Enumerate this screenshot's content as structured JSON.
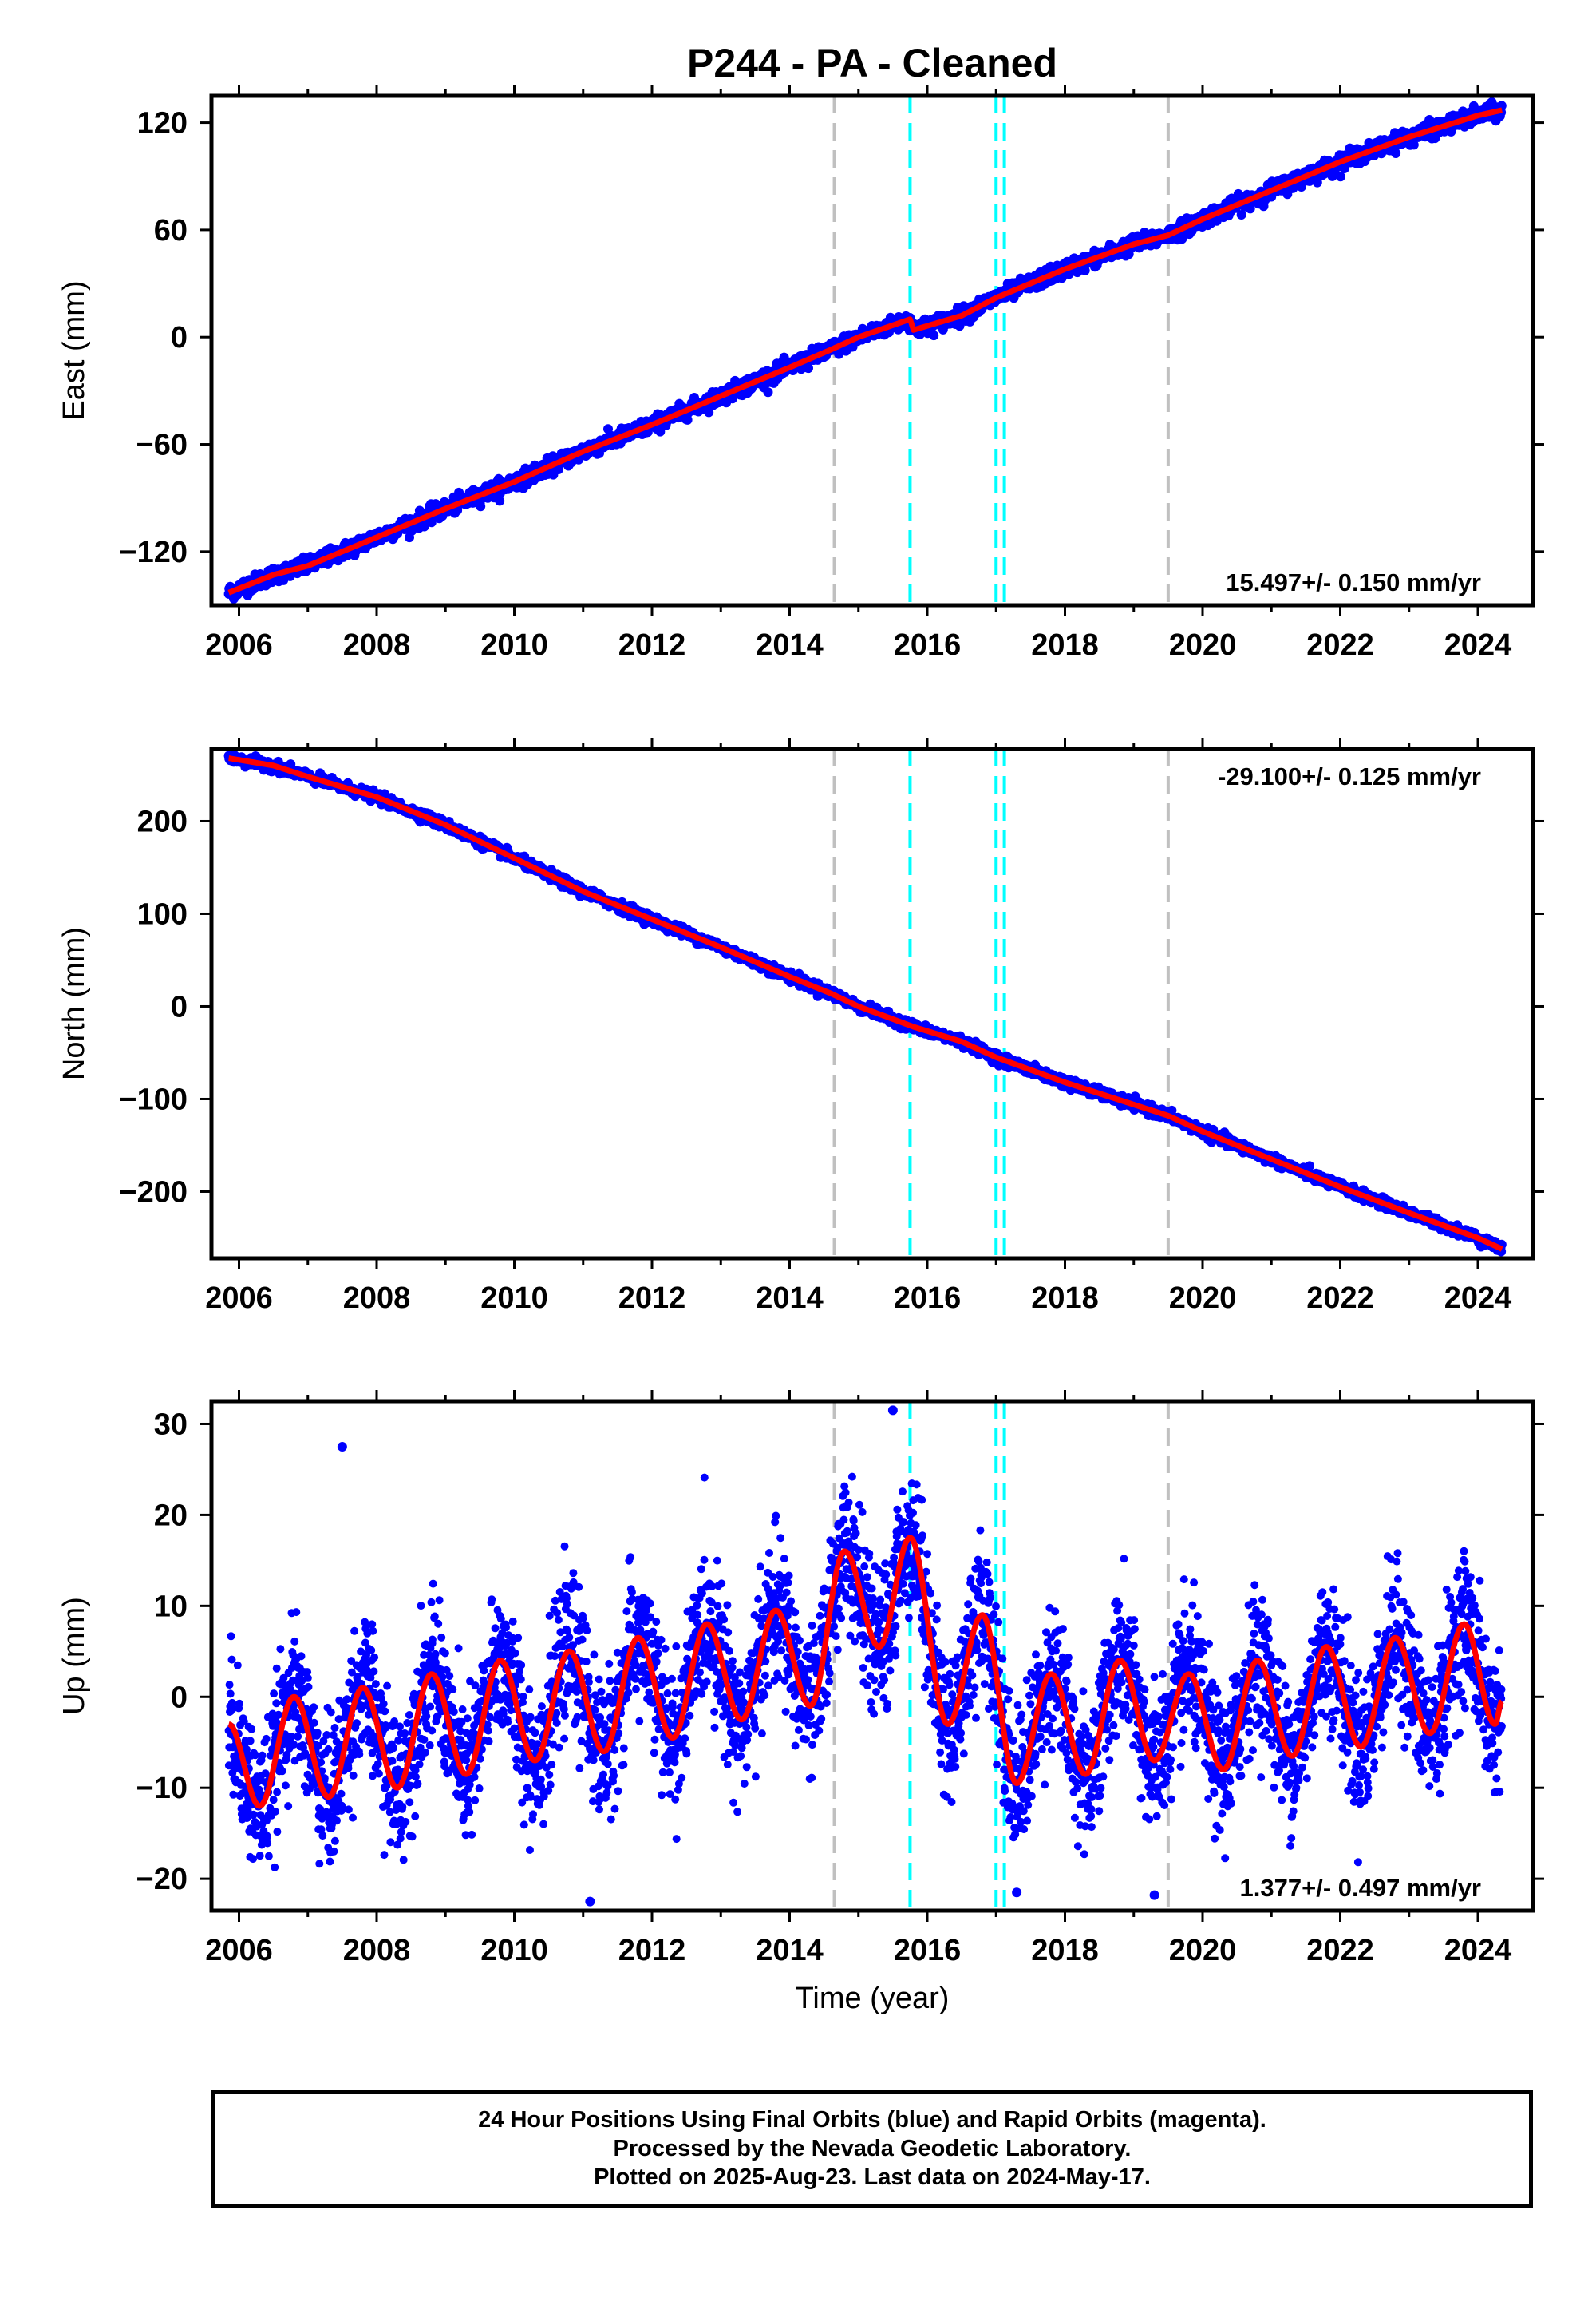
{
  "chart_data": [
    {
      "type": "scatter",
      "title": "P244  - PA - Cleaned",
      "ylabel": "East (mm)",
      "xlabel": "",
      "xlim": [
        2005.6,
        2024.8
      ],
      "ylim": [
        -150,
        135
      ],
      "yticks": [
        -120,
        -60,
        0,
        60,
        120
      ],
      "xticks": [
        2006,
        2008,
        2010,
        2012,
        2014,
        2016,
        2018,
        2020,
        2022,
        2024
      ],
      "rate_label": "15.497+/- 0.150 mm/yr",
      "rate_label_position": "bottom-right",
      "grid": false,
      "series": [
        {
          "color": "#0000ff",
          "marker": "dot",
          "points_xy": [
            [
              2005.85,
              -143
            ],
            [
              2006.5,
              -133
            ],
            [
              2007.0,
              -128
            ],
            [
              2008.0,
              -112
            ],
            [
              2009.0,
              -96
            ],
            [
              2010.0,
              -81
            ],
            [
              2011.0,
              -64
            ],
            [
              2012.0,
              -49
            ],
            [
              2013.0,
              -33
            ],
            [
              2014.0,
              -17
            ],
            [
              2014.6,
              -7
            ],
            [
              2015.0,
              0
            ],
            [
              2015.75,
              10
            ],
            [
              2015.8,
              4
            ],
            [
              2016.5,
              12
            ],
            [
              2017.0,
              22
            ],
            [
              2018.0,
              38
            ],
            [
              2019.0,
              52
            ],
            [
              2019.5,
              57
            ],
            [
              2020.0,
              66
            ],
            [
              2021.0,
              82
            ],
            [
              2022.0,
              98
            ],
            [
              2023.0,
              112
            ],
            [
              2024.0,
              124
            ],
            [
              2024.35,
              127
            ]
          ]
        },
        {
          "color": "#ff0000",
          "marker": "line",
          "points_xy": [
            [
              2005.85,
              -143
            ],
            [
              2006.5,
              -133
            ],
            [
              2007.0,
              -128
            ],
            [
              2008.0,
              -112
            ],
            [
              2009.0,
              -96
            ],
            [
              2010.0,
              -81
            ],
            [
              2011.0,
              -64
            ],
            [
              2012.0,
              -49
            ],
            [
              2013.0,
              -33
            ],
            [
              2014.0,
              -17
            ],
            [
              2014.6,
              -7
            ],
            [
              2015.0,
              0
            ],
            [
              2015.75,
              10
            ],
            [
              2015.8,
              4
            ],
            [
              2016.5,
              12
            ],
            [
              2017.0,
              22
            ],
            [
              2018.0,
              38
            ],
            [
              2019.0,
              52
            ],
            [
              2019.5,
              57
            ],
            [
              2020.0,
              66
            ],
            [
              2021.0,
              82
            ],
            [
              2022.0,
              98
            ],
            [
              2023.0,
              112
            ],
            [
              2024.0,
              124
            ],
            [
              2024.35,
              127
            ]
          ]
        }
      ]
    },
    {
      "type": "scatter",
      "title": "",
      "ylabel": "North (mm)",
      "xlabel": "",
      "xlim": [
        2005.6,
        2024.8
      ],
      "ylim": [
        -272,
        278
      ],
      "yticks": [
        -200,
        -100,
        0,
        100,
        200
      ],
      "xticks": [
        2006,
        2008,
        2010,
        2012,
        2014,
        2016,
        2018,
        2020,
        2022,
        2024
      ],
      "rate_label": "-29.100+/- 0.125 mm/yr",
      "rate_label_position": "top-right",
      "grid": false,
      "series": [
        {
          "color": "#0000ff",
          "marker": "dot",
          "points_xy": [
            [
              2005.85,
              268
            ],
            [
              2006.5,
              260
            ],
            [
              2007.0,
              248
            ],
            [
              2008.0,
              226
            ],
            [
              2009.0,
              196
            ],
            [
              2010.0,
              160
            ],
            [
              2011.0,
              124
            ],
            [
              2012.0,
              94
            ],
            [
              2013.0,
              64
            ],
            [
              2014.0,
              32
            ],
            [
              2014.6,
              14
            ],
            [
              2015.0,
              0
            ],
            [
              2015.8,
              -22
            ],
            [
              2016.5,
              -38
            ],
            [
              2017.0,
              -55
            ],
            [
              2018.0,
              -82
            ],
            [
              2019.0,
              -106
            ],
            [
              2019.5,
              -118
            ],
            [
              2020.0,
              -135
            ],
            [
              2021.0,
              -165
            ],
            [
              2022.0,
              -195
            ],
            [
              2023.0,
              -223
            ],
            [
              2024.0,
              -250
            ],
            [
              2024.35,
              -262
            ]
          ]
        },
        {
          "color": "#ff0000",
          "marker": "line",
          "points_xy": [
            [
              2005.85,
              268
            ],
            [
              2006.5,
              260
            ],
            [
              2007.0,
              248
            ],
            [
              2008.0,
              226
            ],
            [
              2009.0,
              196
            ],
            [
              2010.0,
              160
            ],
            [
              2011.0,
              124
            ],
            [
              2012.0,
              94
            ],
            [
              2013.0,
              64
            ],
            [
              2014.0,
              32
            ],
            [
              2014.6,
              14
            ],
            [
              2015.0,
              0
            ],
            [
              2015.8,
              -22
            ],
            [
              2016.5,
              -38
            ],
            [
              2017.0,
              -55
            ],
            [
              2018.0,
              -82
            ],
            [
              2019.0,
              -106
            ],
            [
              2019.5,
              -118
            ],
            [
              2020.0,
              -135
            ],
            [
              2021.0,
              -165
            ],
            [
              2022.0,
              -195
            ],
            [
              2023.0,
              -223
            ],
            [
              2024.0,
              -250
            ],
            [
              2024.35,
              -262
            ]
          ]
        }
      ]
    },
    {
      "type": "scatter",
      "title": "",
      "ylabel": "Up (mm)",
      "xlabel": "Time (year)",
      "xlim": [
        2005.6,
        2024.8
      ],
      "ylim": [
        -23.5,
        32.5
      ],
      "yticks": [
        -20,
        -10,
        0,
        10,
        20,
        30
      ],
      "xticks": [
        2006,
        2008,
        2010,
        2012,
        2014,
        2016,
        2018,
        2020,
        2022,
        2024
      ],
      "rate_label": "1.377+/- 0.497 mm/yr",
      "rate_label_position": "bottom-right",
      "grid": false,
      "outliers": [
        [
          2007.5,
          27.5
        ],
        [
          2015.5,
          31.5
        ],
        [
          2011.1,
          -22.5
        ],
        [
          2017.3,
          -21.5
        ],
        [
          2019.3,
          -21.8
        ]
      ],
      "series": [
        {
          "color": "#0000ff",
          "marker": "dot",
          "seasonal_amplitude_mm": 6.5,
          "noise_sd_mm": 3.8,
          "points_xy": [
            [
              2005.85,
              -3
            ],
            [
              2014.7,
              12
            ],
            [
              2015.75,
              17
            ],
            [
              2016.8,
              8
            ],
            [
              2024.35,
              -1
            ]
          ]
        },
        {
          "color": "#ff0000",
          "marker": "line",
          "seasonal_amplitude_mm": 6.5,
          "points_xy": [
            [
              2005.85,
              -3
            ],
            [
              2006.3,
              -12
            ],
            [
              2006.8,
              0
            ],
            [
              2007.3,
              -11
            ],
            [
              2007.8,
              1
            ],
            [
              2008.3,
              -10
            ],
            [
              2008.8,
              2.5
            ],
            [
              2009.3,
              -8.5
            ],
            [
              2009.8,
              4
            ],
            [
              2010.3,
              -7
            ],
            [
              2010.8,
              5
            ],
            [
              2011.3,
              -6
            ],
            [
              2011.8,
              6.5
            ],
            [
              2012.3,
              -4.5
            ],
            [
              2012.8,
              8
            ],
            [
              2013.3,
              -2.5
            ],
            [
              2013.8,
              9.5
            ],
            [
              2014.3,
              -1
            ],
            [
              2014.8,
              16
            ],
            [
              2015.3,
              5.5
            ],
            [
              2015.75,
              17.5
            ],
            [
              2016.3,
              -3
            ],
            [
              2016.8,
              9
            ],
            [
              2017.3,
              -9.5
            ],
            [
              2017.8,
              2.5
            ],
            [
              2018.3,
              -8.5
            ],
            [
              2018.8,
              4
            ],
            [
              2019.3,
              -7
            ],
            [
              2019.8,
              2.5
            ],
            [
              2020.3,
              -8
            ],
            [
              2020.8,
              4
            ],
            [
              2021.3,
              -6.5
            ],
            [
              2021.8,
              5.5
            ],
            [
              2022.3,
              -5.5
            ],
            [
              2022.8,
              6.5
            ],
            [
              2023.3,
              -4
            ],
            [
              2023.8,
              8
            ],
            [
              2024.25,
              -3
            ],
            [
              2024.35,
              -0.5
            ]
          ]
        }
      ]
    }
  ],
  "event_lines": [
    {
      "x": 2014.65,
      "color": "#c0c0c0"
    },
    {
      "x": 2015.75,
      "color": "#00ffff"
    },
    {
      "x": 2017.0,
      "color": "#00ffff"
    },
    {
      "x": 2017.12,
      "color": "#00ffff"
    },
    {
      "x": 2019.5,
      "color": "#c0c0c0"
    }
  ],
  "series_colors": {
    "final_orbits": "#0000ff",
    "model_fit": "#ff0000"
  },
  "footer": {
    "line1": "24 Hour Positions Using Final Orbits (blue) and Rapid Orbits (magenta).",
    "line2": "Processed by the Nevada Geodetic Laboratory.",
    "line3": "Plotted on 2025-Aug-23. Last data on 2024-May-17."
  }
}
